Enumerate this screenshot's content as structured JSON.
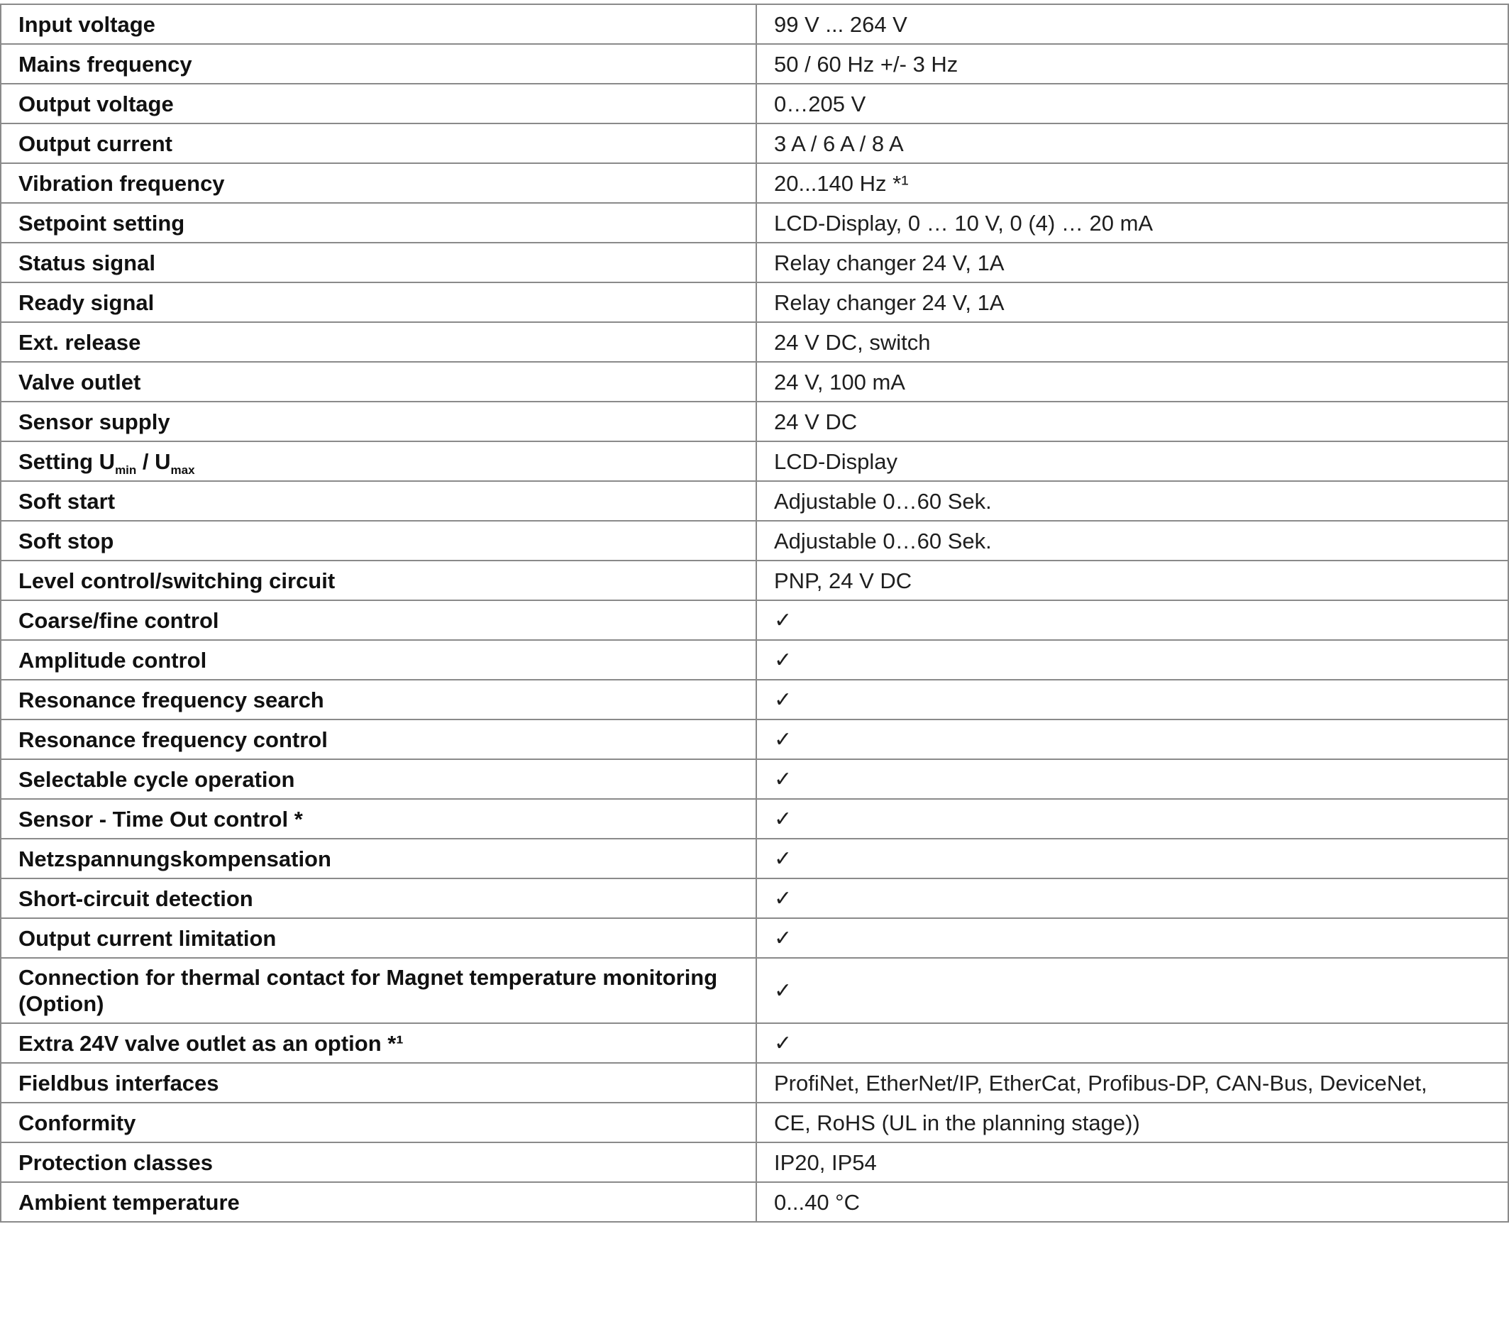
{
  "rows": [
    {
      "label": "Input voltage",
      "value": "99 V ... 264 V"
    },
    {
      "label": "Mains frequency",
      "value": "50 / 60 Hz +/- 3 Hz"
    },
    {
      "label": "Output voltage",
      "value": "0…205 V"
    },
    {
      "label": "Output current",
      "value": "3 A / 6 A / 8 A"
    },
    {
      "label": "Vibration frequency",
      "value": "20...140 Hz *¹"
    },
    {
      "label": "Setpoint setting",
      "value": "LCD-Display, 0 … 10 V, 0 (4) … 20 mA"
    },
    {
      "label": "Status signal",
      "value": "Relay changer 24 V, 1A"
    },
    {
      "label": "Ready signal",
      "value": "Relay changer 24 V, 1A"
    },
    {
      "label": "Ext. release",
      "value": "24 V DC, switch"
    },
    {
      "label": "Valve outlet",
      "value": "24 V, 100 mA"
    },
    {
      "label": "Sensor supply",
      "value": "24 V DC"
    },
    {
      "label": "Setting U",
      "label_sub1": "min",
      "label_mid": " / U",
      "label_sub2": "max",
      "value": "LCD-Display"
    },
    {
      "label": "Soft start",
      "value": "Adjustable 0…60 Sek."
    },
    {
      "label": "Soft stop",
      "value": "Adjustable 0…60 Sek."
    },
    {
      "label": "Level control/switching circuit",
      "value": "PNP, 24 V DC"
    },
    {
      "label": "Coarse/fine control",
      "value": "✓"
    },
    {
      "label": "Amplitude control",
      "value": "✓"
    },
    {
      "label": "Resonance frequency search",
      "value": "✓"
    },
    {
      "label": "Resonance frequency control",
      "value": "✓"
    },
    {
      "label": "Selectable cycle operation",
      "value": "✓"
    },
    {
      "label": "Sensor - Time Out control *",
      "value": "✓"
    },
    {
      "label": "Netzspannungskompensation",
      "value": "✓"
    },
    {
      "label": "Short-circuit detection",
      "value": "✓"
    },
    {
      "label": "Output current limitation",
      "value": "✓"
    },
    {
      "label": "Connection for thermal contact for Magnet temperature monitoring (Option)",
      "value": "✓"
    },
    {
      "label": "Extra 24V valve outlet as an option *¹",
      "value": "✓"
    },
    {
      "label": "Fieldbus interfaces",
      "value": "ProfiNet, EtherNet/IP, EtherCat, Profibus-DP, CAN-Bus, DeviceNet,"
    },
    {
      "label": "Conformity",
      "value": "CE, RoHS (UL in the planning stage))"
    },
    {
      "label": "Protection classes",
      "value": "IP20, IP54"
    },
    {
      "label": "Ambient temperature",
      "value": "0...40 °C"
    }
  ]
}
